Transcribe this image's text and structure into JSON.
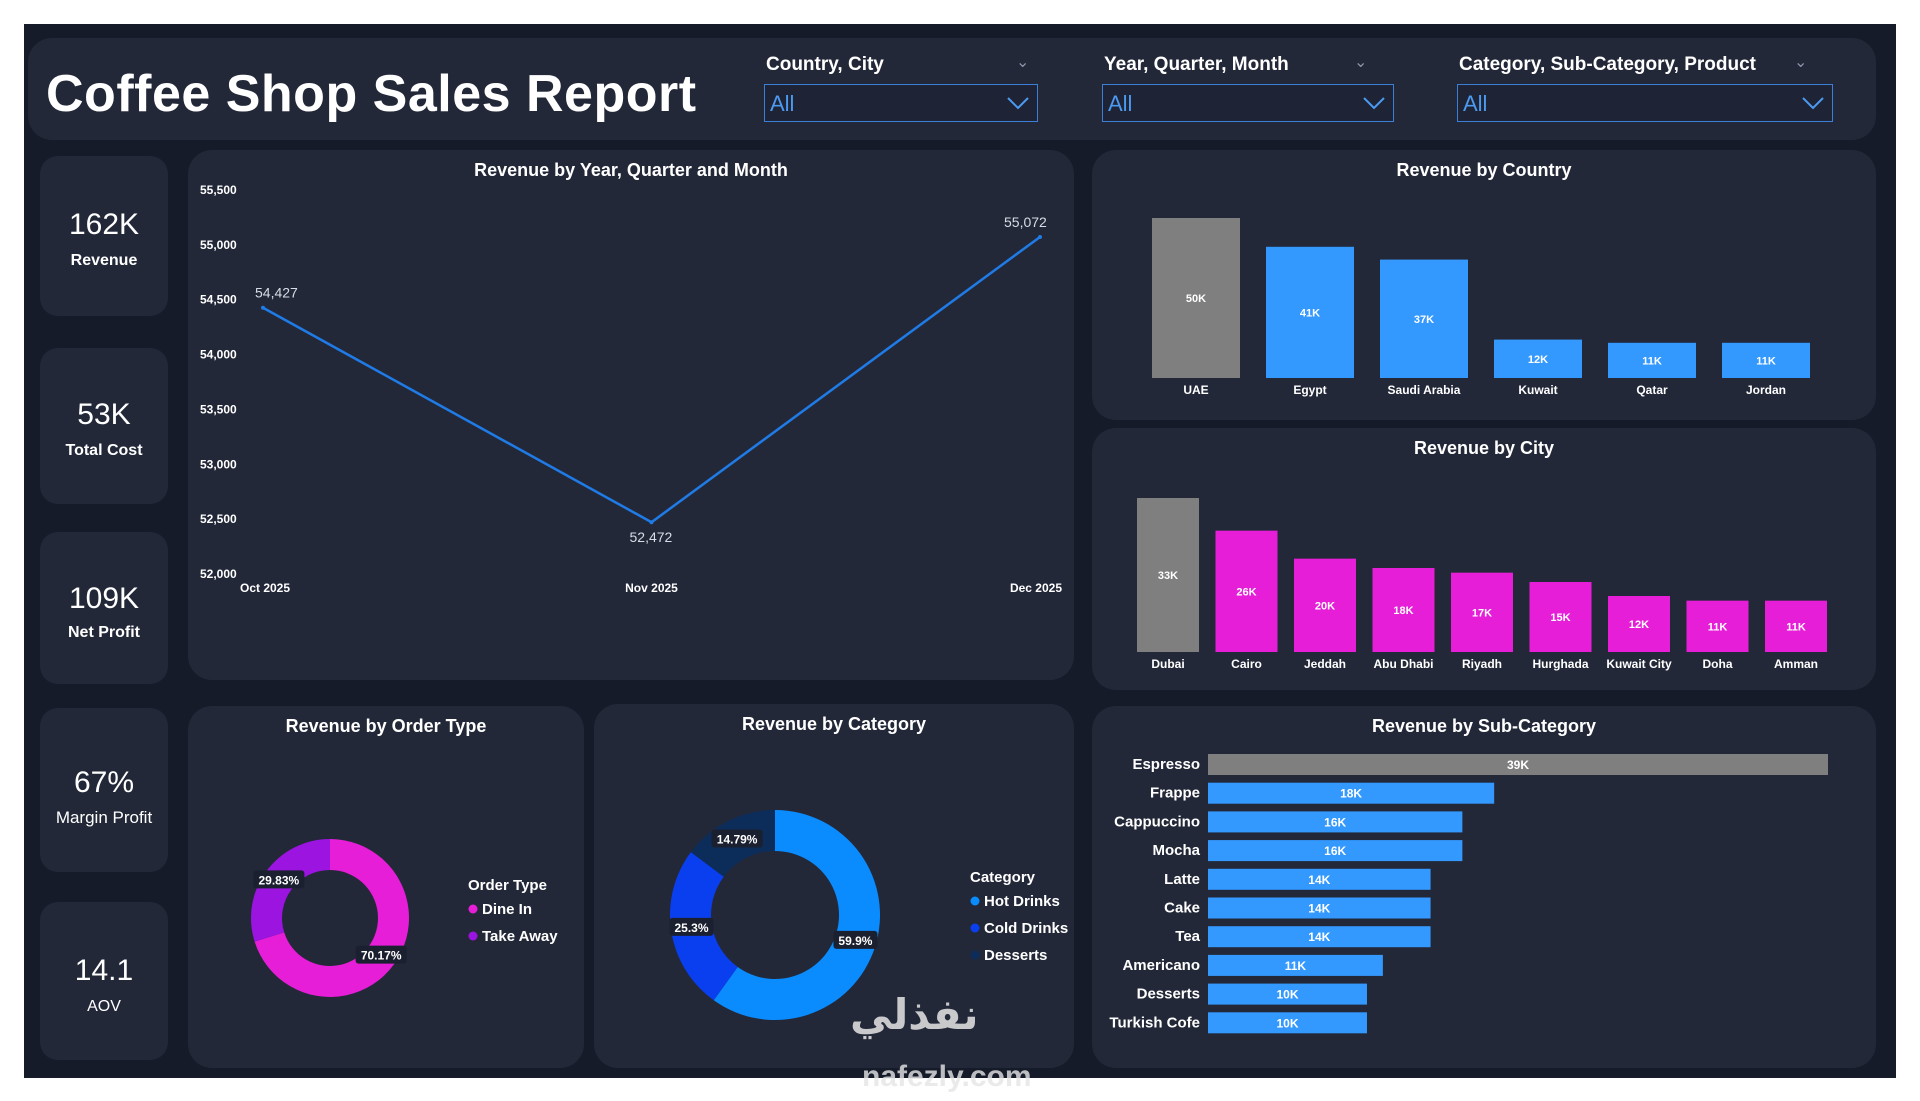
{
  "title": "Coffee Shop Sales Report",
  "slicers": [
    {
      "label": "Country, City",
      "value": "All"
    },
    {
      "label": "Year, Quarter, Month",
      "value": "All"
    },
    {
      "label": "Category, Sub-Category, Product",
      "value": "All"
    }
  ],
  "kpis": [
    {
      "value": "162K",
      "label": "Revenue"
    },
    {
      "value": "53K",
      "label": "Total Cost"
    },
    {
      "value": "109K",
      "label": "Net Profit"
    },
    {
      "value": "67%",
      "label": "Margin Profit"
    },
    {
      "value": "14.1",
      "label": "AOV"
    }
  ],
  "colors": {
    "background": "#161b2a",
    "panel": "#232839",
    "blue": "#3399ff",
    "gray": "#7f7f7f",
    "magenta": "#e61ed8",
    "purple": "#9b14e0",
    "hot_drinks": "#0a8cff",
    "cold_drinks": "#0a3ff0",
    "desserts": "#0c2d5a",
    "line": "#1f7be6"
  },
  "chart_data": [
    {
      "type": "line",
      "title": "Revenue by Year, Quarter and Month",
      "x": [
        "Oct 2025",
        "Nov 2025",
        "Dec 2025"
      ],
      "values": [
        54427,
        52472,
        55072
      ],
      "data_labels": [
        "54,427",
        "52,472",
        "55,072"
      ],
      "ylim": [
        52000,
        55500
      ],
      "yticks": [
        "55,500",
        "55,000",
        "54,500",
        "54,000",
        "53,500",
        "53,000",
        "52,500",
        "52,000"
      ]
    },
    {
      "type": "bar",
      "title": "Revenue by Country",
      "categories": [
        "UAE",
        "Egypt",
        "Saudi Arabia",
        "Kuwait",
        "Qatar",
        "Jordan"
      ],
      "values": [
        50,
        41,
        37,
        12,
        11,
        11
      ],
      "data_labels": [
        "50K",
        "41K",
        "37K",
        "12K",
        "11K",
        "11K"
      ],
      "highlight_index": 0
    },
    {
      "type": "bar",
      "title": "Revenue by City",
      "categories": [
        "Dubai",
        "Cairo",
        "Jeddah",
        "Abu Dhabi",
        "Riyadh",
        "Hurghada",
        "Kuwait City",
        "Doha",
        "Amman"
      ],
      "values": [
        33,
        26,
        20,
        18,
        17,
        15,
        12,
        11,
        11
      ],
      "data_labels": [
        "33K",
        "26K",
        "20K",
        "18K",
        "17K",
        "15K",
        "12K",
        "11K",
        "11K"
      ],
      "highlight_index": 0
    },
    {
      "type": "pie",
      "title": "Revenue by Order Type",
      "legend_title": "Order Type",
      "categories": [
        "Dine In",
        "Take Away"
      ],
      "values": [
        70.17,
        29.83
      ],
      "data_labels": [
        "70.17%",
        "29.83%"
      ]
    },
    {
      "type": "pie",
      "title": "Revenue by Category",
      "legend_title": "Category",
      "categories": [
        "Hot  Drinks",
        "Cold  Drinks",
        "Desserts"
      ],
      "values": [
        59.9,
        25.3,
        14.79
      ],
      "data_labels": [
        "59.9%",
        "25.3%",
        "14.79%"
      ]
    },
    {
      "type": "bar",
      "title": "Revenue by Sub-Category",
      "orientation": "horizontal",
      "categories": [
        "Espresso",
        "Frappe",
        "Cappuccino",
        "Mocha",
        "Latte",
        "Cake",
        "Tea",
        "Americano",
        "Desserts",
        "Turkish Cofe"
      ],
      "values": [
        39,
        18,
        16,
        16,
        14,
        14,
        14,
        11,
        10,
        10
      ],
      "data_labels": [
        "39K",
        "18K",
        "16K",
        "16K",
        "14K",
        "14K",
        "14K",
        "11K",
        "10K",
        "10K"
      ],
      "highlight_index": 0
    }
  ],
  "watermark": {
    "arabic": "نفذلي",
    "latin": "nafezly.com"
  }
}
